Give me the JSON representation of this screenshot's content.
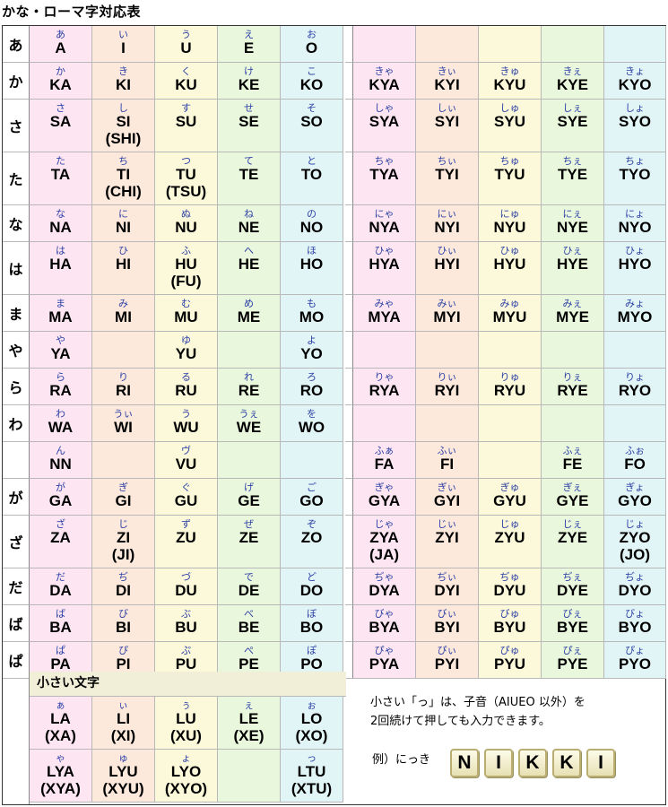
{
  "title": "かな・ローマ字対応表",
  "colors": {
    "col_bg": [
      "#fde6f1",
      "#fde9dc",
      "#fbf9d9",
      "#e9f7dc",
      "#e1f4f6"
    ],
    "kana_color": "#2b3fa6"
  },
  "rows": [
    {
      "head": "あ",
      "cells": [
        [
          "あ",
          "A"
        ],
        [
          "い",
          "I"
        ],
        [
          "う",
          "U"
        ],
        [
          "え",
          "E"
        ],
        [
          "お",
          "O"
        ],
        null,
        null,
        null,
        null,
        null
      ]
    },
    {
      "head": "か",
      "cells": [
        [
          "か",
          "KA"
        ],
        [
          "き",
          "KI"
        ],
        [
          "く",
          "KU"
        ],
        [
          "け",
          "KE"
        ],
        [
          "こ",
          "KO"
        ],
        [
          "きゃ",
          "KYA"
        ],
        [
          "きぃ",
          "KYI"
        ],
        [
          "きゅ",
          "KYU"
        ],
        [
          "きぇ",
          "KYE"
        ],
        [
          "きょ",
          "KYO"
        ]
      ]
    },
    {
      "head": "さ",
      "cells": [
        [
          "さ",
          "SA"
        ],
        [
          "し",
          "SI",
          "(SHI)"
        ],
        [
          "す",
          "SU"
        ],
        [
          "せ",
          "SE"
        ],
        [
          "そ",
          "SO"
        ],
        [
          "しゃ",
          "SYA"
        ],
        [
          "しぃ",
          "SYI"
        ],
        [
          "しゅ",
          "SYU"
        ],
        [
          "しぇ",
          "SYE"
        ],
        [
          "しょ",
          "SYO"
        ]
      ]
    },
    {
      "head": "た",
      "cells": [
        [
          "た",
          "TA"
        ],
        [
          "ち",
          "TI",
          "(CHI)"
        ],
        [
          "つ",
          "TU",
          "(TSU)"
        ],
        [
          "て",
          "TE"
        ],
        [
          "と",
          "TO"
        ],
        [
          "ちゃ",
          "TYA"
        ],
        [
          "ちぃ",
          "TYI"
        ],
        [
          "ちゅ",
          "TYU"
        ],
        [
          "ちぇ",
          "TYE"
        ],
        [
          "ちょ",
          "TYO"
        ]
      ]
    },
    {
      "head": "な",
      "cells": [
        [
          "な",
          "NA"
        ],
        [
          "に",
          "NI"
        ],
        [
          "ぬ",
          "NU"
        ],
        [
          "ね",
          "NE"
        ],
        [
          "の",
          "NO"
        ],
        [
          "にゃ",
          "NYA"
        ],
        [
          "にぃ",
          "NYI"
        ],
        [
          "にゅ",
          "NYU"
        ],
        [
          "にぇ",
          "NYE"
        ],
        [
          "にょ",
          "NYO"
        ]
      ]
    },
    {
      "head": "は",
      "cells": [
        [
          "は",
          "HA"
        ],
        [
          "ひ",
          "HI"
        ],
        [
          "ふ",
          "HU",
          "(FU)"
        ],
        [
          "へ",
          "HE"
        ],
        [
          "ほ",
          "HO"
        ],
        [
          "ひゃ",
          "HYA"
        ],
        [
          "ひぃ",
          "HYI"
        ],
        [
          "ひゅ",
          "HYU"
        ],
        [
          "ひぇ",
          "HYE"
        ],
        [
          "ひょ",
          "HYO"
        ]
      ]
    },
    {
      "head": "ま",
      "cells": [
        [
          "ま",
          "MA"
        ],
        [
          "み",
          "MI"
        ],
        [
          "む",
          "MU"
        ],
        [
          "め",
          "ME"
        ],
        [
          "も",
          "MO"
        ],
        [
          "みゃ",
          "MYA"
        ],
        [
          "みぃ",
          "MYI"
        ],
        [
          "みゅ",
          "MYU"
        ],
        [
          "みぇ",
          "MYE"
        ],
        [
          "みょ",
          "MYO"
        ]
      ]
    },
    {
      "head": "や",
      "cells": [
        [
          "や",
          "YA"
        ],
        null,
        [
          "ゆ",
          "YU"
        ],
        null,
        [
          "よ",
          "YO"
        ],
        null,
        null,
        null,
        null,
        null
      ]
    },
    {
      "head": "ら",
      "cells": [
        [
          "ら",
          "RA"
        ],
        [
          "り",
          "RI"
        ],
        [
          "る",
          "RU"
        ],
        [
          "れ",
          "RE"
        ],
        [
          "ろ",
          "RO"
        ],
        [
          "りゃ",
          "RYA"
        ],
        [
          "りぃ",
          "RYI"
        ],
        [
          "りゅ",
          "RYU"
        ],
        [
          "りぇ",
          "RYE"
        ],
        [
          "りょ",
          "RYO"
        ]
      ]
    },
    {
      "head": "わ",
      "cells": [
        [
          "わ",
          "WA"
        ],
        [
          "うぃ",
          "WI"
        ],
        [
          "う",
          "WU"
        ],
        [
          "うぇ",
          "WE"
        ],
        [
          "を",
          "WO"
        ],
        null,
        null,
        null,
        null,
        null
      ]
    },
    {
      "head": "",
      "cells": [
        [
          "ん",
          "NN"
        ],
        null,
        [
          "ヴ",
          "VU"
        ],
        null,
        null,
        [
          "ふぁ",
          "FA"
        ],
        [
          "ふぃ",
          "FI"
        ],
        null,
        [
          "ふぇ",
          "FE"
        ],
        [
          "ふぉ",
          "FO"
        ]
      ]
    },
    {
      "head": "が",
      "cells": [
        [
          "が",
          "GA"
        ],
        [
          "ぎ",
          "GI"
        ],
        [
          "ぐ",
          "GU"
        ],
        [
          "げ",
          "GE"
        ],
        [
          "ご",
          "GO"
        ],
        [
          "ぎゃ",
          "GYA"
        ],
        [
          "ぎぃ",
          "GYI"
        ],
        [
          "ぎゅ",
          "GYU"
        ],
        [
          "ぎぇ",
          "GYE"
        ],
        [
          "ぎょ",
          "GYO"
        ]
      ]
    },
    {
      "head": "ざ",
      "cells": [
        [
          "ざ",
          "ZA"
        ],
        [
          "じ",
          "ZI",
          "(JI)"
        ],
        [
          "ず",
          "ZU"
        ],
        [
          "ぜ",
          "ZE"
        ],
        [
          "ぞ",
          "ZO"
        ],
        [
          "じゃ",
          "ZYA",
          "(JA)"
        ],
        [
          "じぃ",
          "ZYI"
        ],
        [
          "じゅ",
          "ZYU"
        ],
        [
          "じぇ",
          "ZYE"
        ],
        [
          "じょ",
          "ZYO",
          "(JO)"
        ]
      ]
    },
    {
      "head": "だ",
      "cells": [
        [
          "だ",
          "DA"
        ],
        [
          "ぢ",
          "DI"
        ],
        [
          "づ",
          "DU"
        ],
        [
          "で",
          "DE"
        ],
        [
          "ど",
          "DO"
        ],
        [
          "ぢゃ",
          "DYA"
        ],
        [
          "ぢぃ",
          "DYI"
        ],
        [
          "ぢゅ",
          "DYU"
        ],
        [
          "ぢぇ",
          "DYE"
        ],
        [
          "ぢょ",
          "DYO"
        ]
      ]
    },
    {
      "head": "ば",
      "cells": [
        [
          "ば",
          "BA"
        ],
        [
          "び",
          "BI"
        ],
        [
          "ぶ",
          "BU"
        ],
        [
          "べ",
          "BE"
        ],
        [
          "ぼ",
          "BO"
        ],
        [
          "びゃ",
          "BYA"
        ],
        [
          "びぃ",
          "BYI"
        ],
        [
          "びゅ",
          "BYU"
        ],
        [
          "びぇ",
          "BYE"
        ],
        [
          "びょ",
          "BYO"
        ]
      ]
    },
    {
      "head": "ぱ",
      "cells": [
        [
          "ぱ",
          "PA"
        ],
        [
          "ぴ",
          "PI"
        ],
        [
          "ぷ",
          "PU"
        ],
        [
          "ぺ",
          "PE"
        ],
        [
          "ぽ",
          "PO"
        ],
        [
          "ぴゃ",
          "PYA"
        ],
        [
          "ぴぃ",
          "PYI"
        ],
        [
          "ぴゅ",
          "PYU"
        ],
        [
          "ぴぇ",
          "PYE"
        ],
        [
          "ぴょ",
          "PYO"
        ]
      ]
    }
  ],
  "small": {
    "title": "小さい文字",
    "rows": [
      [
        [
          "ぁ",
          "LA",
          "(XA)"
        ],
        [
          "ぃ",
          "LI",
          "(XI)"
        ],
        [
          "ぅ",
          "LU",
          "(XU)"
        ],
        [
          "ぇ",
          "LE",
          "(XE)"
        ],
        [
          "ぉ",
          "LO",
          "(XO)"
        ]
      ],
      [
        [
          "ゃ",
          "LYA",
          "(XYA)"
        ],
        [
          "ゅ",
          "LYU",
          "(XYU)"
        ],
        [
          "ょ",
          "LYO",
          "(XYO)"
        ],
        null,
        [
          "っ",
          "LTU",
          "(XTU)"
        ]
      ]
    ]
  },
  "note": {
    "line1": "小さい「っ」は、子音（AIUEO 以外）を",
    "line2": "2回続けて押しても入力できます。",
    "example_label": "例）にっき",
    "keys": [
      "N",
      "I",
      "K",
      "K",
      "I"
    ]
  }
}
